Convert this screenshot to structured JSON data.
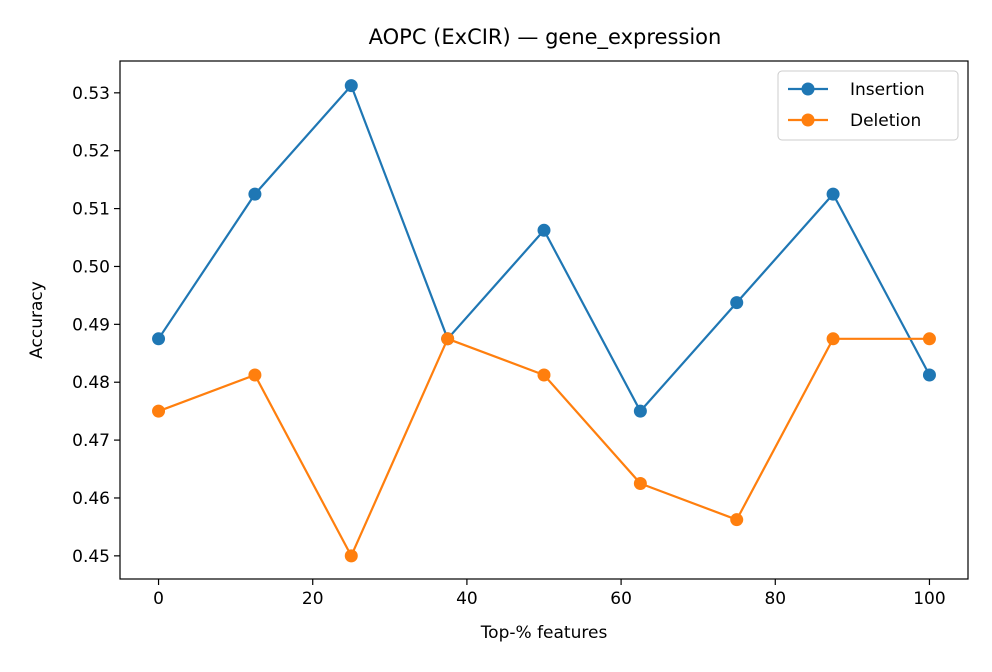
{
  "chart_data": {
    "type": "line",
    "title": "AOPC (ExCIR) — gene_expression",
    "xlabel": "Top-% features",
    "ylabel": "Accuracy",
    "x": [
      0,
      12.5,
      25,
      37.5,
      50,
      62.5,
      75,
      87.5,
      100
    ],
    "xlim": [
      -5,
      105
    ],
    "ylim": [
      0.446,
      0.5355
    ],
    "xticks": [
      0,
      20,
      40,
      60,
      80,
      100
    ],
    "xtick_labels": [
      "0",
      "20",
      "40",
      "60",
      "80",
      "100"
    ],
    "yticks": [
      0.45,
      0.46,
      0.47,
      0.48,
      0.49,
      0.5,
      0.51,
      0.52,
      0.53
    ],
    "ytick_labels": [
      "0.45",
      "0.46",
      "0.47",
      "0.48",
      "0.49",
      "0.50",
      "0.51",
      "0.52",
      "0.53"
    ],
    "grid": false,
    "legend_position": "top-right",
    "series": [
      {
        "name": "Insertion",
        "color": "#1f77b4",
        "marker": "circle",
        "values": [
          0.4875,
          0.5125,
          0.53125,
          0.4875,
          0.50625,
          0.475,
          0.49375,
          0.5125,
          0.48125
        ]
      },
      {
        "name": "Deletion",
        "color": "#ff7f0e",
        "marker": "circle",
        "values": [
          0.475,
          0.48125,
          0.45,
          0.4875,
          0.48125,
          0.4625,
          0.45625,
          0.4875,
          0.4875
        ]
      }
    ]
  }
}
